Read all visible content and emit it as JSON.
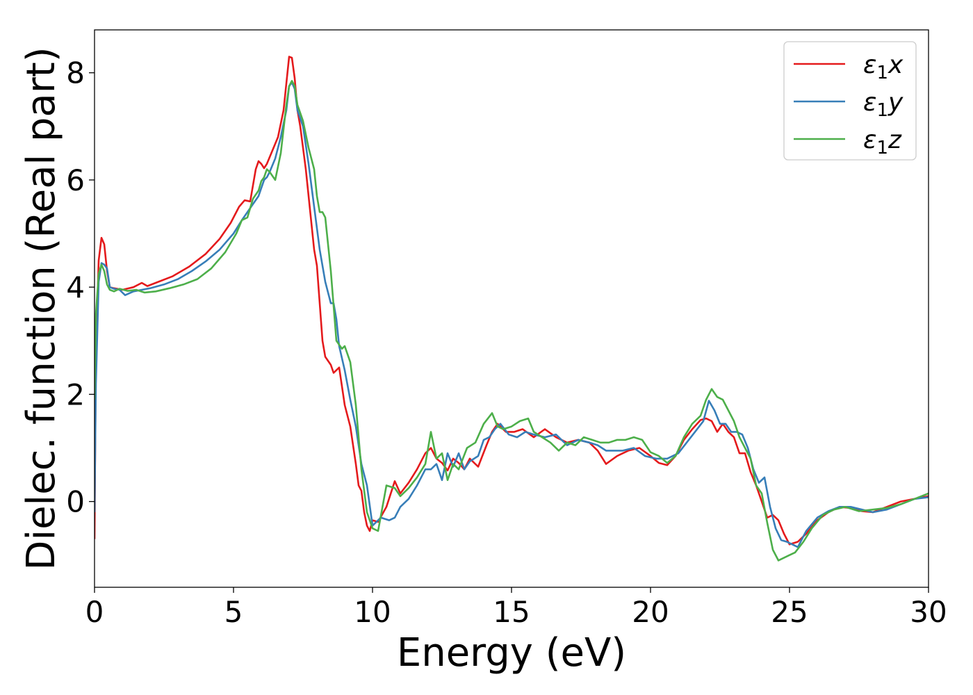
{
  "chart_data": {
    "type": "line",
    "title": "",
    "xlabel": "Energy (eV)",
    "ylabel": "Dielec. function (Real part)",
    "xlim": [
      0,
      30
    ],
    "ylim": [
      -1.6,
      8.8
    ],
    "xticks": [
      0,
      5,
      10,
      15,
      20,
      25,
      30
    ],
    "yticks": [
      0,
      2,
      4,
      6,
      8
    ],
    "grid": false,
    "legend_position": "top-right",
    "series": [
      {
        "name": "ε1x",
        "legend_main": "ε",
        "legend_sub": "1",
        "legend_suffix": "x",
        "color": "#e41a1c",
        "x": [
          0.0,
          0.05,
          0.15,
          0.25,
          0.35,
          0.45,
          0.55,
          0.7,
          1.0,
          1.4,
          1.7,
          1.9,
          2.2,
          2.8,
          3.4,
          4.0,
          4.5,
          4.9,
          5.2,
          5.4,
          5.6,
          5.8,
          5.9,
          6.0,
          6.1,
          6.2,
          6.4,
          6.6,
          6.8,
          6.9,
          7.0,
          7.1,
          7.2,
          7.3,
          7.4,
          7.6,
          7.8,
          7.9,
          8.0,
          8.2,
          8.3,
          8.5,
          8.6,
          8.8,
          9.0,
          9.2,
          9.4,
          9.5,
          9.6,
          9.7,
          9.8,
          9.9,
          10.0,
          10.2,
          10.5,
          10.8,
          11.0,
          11.3,
          11.6,
          11.9,
          12.1,
          12.3,
          12.5,
          12.7,
          12.9,
          13.1,
          13.3,
          13.5,
          13.8,
          14.1,
          14.3,
          14.5,
          14.8,
          15.1,
          15.4,
          15.8,
          16.2,
          16.6,
          17.0,
          17.4,
          17.8,
          18.1,
          18.4,
          18.8,
          19.2,
          19.6,
          20.0,
          20.3,
          20.6,
          20.9,
          21.2,
          21.5,
          21.8,
          22.0,
          22.2,
          22.4,
          22.6,
          22.8,
          23.0,
          23.2,
          23.4,
          23.6,
          23.8,
          24.0,
          24.2,
          24.4,
          24.6,
          24.8,
          25.0,
          25.3,
          25.6,
          26.0,
          26.4,
          26.8,
          27.2,
          27.6,
          28.0,
          28.5,
          29.0,
          29.5,
          30.0
        ],
        "y": [
          -0.7,
          2.8,
          4.5,
          4.92,
          4.8,
          4.3,
          4.0,
          3.98,
          3.95,
          4.0,
          4.08,
          4.02,
          4.08,
          4.2,
          4.38,
          4.62,
          4.9,
          5.2,
          5.5,
          5.62,
          5.6,
          6.2,
          6.35,
          6.3,
          6.22,
          6.3,
          6.55,
          6.8,
          7.3,
          7.8,
          8.3,
          8.28,
          7.9,
          7.3,
          7.0,
          6.2,
          5.2,
          4.7,
          4.4,
          3.0,
          2.7,
          2.55,
          2.4,
          2.5,
          1.8,
          1.4,
          0.7,
          0.3,
          0.2,
          -0.2,
          -0.45,
          -0.55,
          -0.35,
          -0.38,
          -0.1,
          0.38,
          0.15,
          0.35,
          0.6,
          0.9,
          1.0,
          0.8,
          0.72,
          0.58,
          0.8,
          0.72,
          0.6,
          0.8,
          0.65,
          1.05,
          1.3,
          1.45,
          1.3,
          1.3,
          1.35,
          1.2,
          1.35,
          1.2,
          1.1,
          1.15,
          1.1,
          0.95,
          0.7,
          0.85,
          0.95,
          1.0,
          0.85,
          0.72,
          0.68,
          0.85,
          1.15,
          1.35,
          1.52,
          1.55,
          1.5,
          1.3,
          1.45,
          1.3,
          1.2,
          0.9,
          0.9,
          0.55,
          0.3,
          0.0,
          -0.3,
          -0.25,
          -0.35,
          -0.6,
          -0.8,
          -0.75,
          -0.6,
          -0.35,
          -0.2,
          -0.1,
          -0.12,
          -0.18,
          -0.2,
          -0.1,
          0.0,
          0.05,
          0.1
        ]
      },
      {
        "name": "ε1y",
        "legend_main": "ε",
        "legend_sub": "1",
        "legend_suffix": "y",
        "color": "#377eb8",
        "x": [
          0.0,
          0.05,
          0.15,
          0.25,
          0.35,
          0.45,
          0.55,
          0.7,
          0.9,
          1.1,
          1.4,
          1.7,
          2.0,
          2.5,
          3.0,
          3.5,
          4.0,
          4.5,
          5.0,
          5.3,
          5.5,
          5.7,
          5.9,
          6.0,
          6.1,
          6.2,
          6.3,
          6.5,
          6.7,
          6.9,
          7.0,
          7.1,
          7.2,
          7.3,
          7.5,
          7.7,
          7.9,
          8.1,
          8.3,
          8.5,
          8.6,
          8.7,
          8.8,
          9.0,
          9.2,
          9.4,
          9.6,
          9.8,
          10.0,
          10.3,
          10.6,
          10.8,
          11.0,
          11.3,
          11.6,
          11.9,
          12.1,
          12.3,
          12.5,
          12.7,
          12.9,
          13.1,
          13.3,
          13.5,
          13.8,
          14.0,
          14.2,
          14.4,
          14.6,
          14.9,
          15.2,
          15.5,
          15.8,
          16.2,
          16.6,
          17.0,
          17.4,
          17.8,
          18.1,
          18.4,
          18.7,
          19.0,
          19.4,
          19.8,
          20.2,
          20.6,
          21.0,
          21.3,
          21.6,
          21.9,
          22.1,
          22.3,
          22.5,
          22.7,
          22.9,
          23.1,
          23.3,
          23.5,
          23.7,
          23.9,
          24.1,
          24.3,
          24.5,
          24.7,
          24.9,
          25.1,
          25.3,
          25.6,
          26.0,
          26.4,
          26.8,
          27.2,
          27.6,
          28.0,
          28.5,
          29.0,
          29.5,
          30.0
        ],
        "y": [
          -0.2,
          2.2,
          4.1,
          4.45,
          4.42,
          4.35,
          4.0,
          3.97,
          3.95,
          3.85,
          3.92,
          3.95,
          3.98,
          4.05,
          4.15,
          4.3,
          4.48,
          4.7,
          5.0,
          5.25,
          5.4,
          5.55,
          5.7,
          5.85,
          6.0,
          6.05,
          6.15,
          6.4,
          6.8,
          7.3,
          7.75,
          7.82,
          7.7,
          7.3,
          7.0,
          6.3,
          5.5,
          4.7,
          4.1,
          3.7,
          3.7,
          3.4,
          2.9,
          2.45,
          1.9,
          1.4,
          0.7,
          0.3,
          -0.45,
          -0.3,
          -0.35,
          -0.3,
          -0.1,
          0.05,
          0.3,
          0.6,
          0.6,
          0.7,
          0.4,
          0.9,
          0.65,
          0.9,
          0.6,
          0.75,
          0.85,
          1.15,
          1.2,
          1.35,
          1.45,
          1.25,
          1.2,
          1.3,
          1.25,
          1.2,
          1.25,
          1.05,
          1.15,
          1.1,
          1.05,
          0.95,
          0.95,
          0.95,
          1.0,
          0.85,
          0.8,
          0.8,
          0.9,
          1.1,
          1.3,
          1.5,
          1.88,
          1.7,
          1.45,
          1.45,
          1.3,
          1.3,
          1.25,
          1.0,
          0.6,
          0.35,
          0.45,
          -0.1,
          -0.5,
          -0.72,
          -0.75,
          -0.8,
          -0.85,
          -0.55,
          -0.3,
          -0.18,
          -0.1,
          -0.1,
          -0.15,
          -0.2,
          -0.15,
          -0.05,
          0.05,
          0.08
        ]
      },
      {
        "name": "ε1z",
        "legend_main": "ε",
        "legend_sub": "1",
        "legend_suffix": "z",
        "color": "#4daf4a",
        "x": [
          0.0,
          0.05,
          0.15,
          0.25,
          0.35,
          0.45,
          0.55,
          0.7,
          0.9,
          1.2,
          1.5,
          1.8,
          2.2,
          2.7,
          3.2,
          3.7,
          4.2,
          4.7,
          5.1,
          5.3,
          5.5,
          5.7,
          5.9,
          6.0,
          6.1,
          6.2,
          6.3,
          6.5,
          6.7,
          6.9,
          7.0,
          7.1,
          7.2,
          7.3,
          7.5,
          7.7,
          7.9,
          8.0,
          8.1,
          8.2,
          8.3,
          8.5,
          8.7,
          8.9,
          9.0,
          9.2,
          9.4,
          9.6,
          9.8,
          10.0,
          10.2,
          10.5,
          10.8,
          11.0,
          11.3,
          11.6,
          11.9,
          12.1,
          12.3,
          12.5,
          12.7,
          12.9,
          13.1,
          13.4,
          13.7,
          14.0,
          14.3,
          14.5,
          14.7,
          15.0,
          15.3,
          15.6,
          15.8,
          16.1,
          16.4,
          16.7,
          17.0,
          17.3,
          17.6,
          17.9,
          18.2,
          18.5,
          18.8,
          19.1,
          19.4,
          19.7,
          20.0,
          20.3,
          20.6,
          20.9,
          21.2,
          21.5,
          21.8,
          22.0,
          22.2,
          22.4,
          22.6,
          22.8,
          23.0,
          23.2,
          23.4,
          23.6,
          23.8,
          24.0,
          24.2,
          24.4,
          24.6,
          24.8,
          25.0,
          25.2,
          25.5,
          25.8,
          26.2,
          26.6,
          27.0,
          27.5,
          28.0,
          28.5,
          29.0,
          29.5,
          30.0
        ],
        "y": [
          1.9,
          3.5,
          4.25,
          4.42,
          4.3,
          4.05,
          3.95,
          3.92,
          3.97,
          3.93,
          3.95,
          3.9,
          3.92,
          3.98,
          4.05,
          4.15,
          4.35,
          4.65,
          5.0,
          5.25,
          5.3,
          5.65,
          5.8,
          5.98,
          6.05,
          6.2,
          6.15,
          6.0,
          6.5,
          7.4,
          7.75,
          7.85,
          7.75,
          7.4,
          7.1,
          6.6,
          6.2,
          5.7,
          5.4,
          5.4,
          5.3,
          4.3,
          3.0,
          2.85,
          2.9,
          2.6,
          1.8,
          0.6,
          -0.2,
          -0.5,
          -0.55,
          0.3,
          0.25,
          0.1,
          0.25,
          0.45,
          0.7,
          1.3,
          0.8,
          0.9,
          0.4,
          0.7,
          0.6,
          1.0,
          1.1,
          1.45,
          1.65,
          1.4,
          1.35,
          1.4,
          1.5,
          1.55,
          1.3,
          1.2,
          1.1,
          0.95,
          1.1,
          1.05,
          1.2,
          1.15,
          1.1,
          1.1,
          1.15,
          1.15,
          1.2,
          1.15,
          0.92,
          0.85,
          0.72,
          0.85,
          1.2,
          1.45,
          1.6,
          1.9,
          2.1,
          1.95,
          1.9,
          1.7,
          1.5,
          1.2,
          1.0,
          0.8,
          0.3,
          0.15,
          -0.4,
          -0.9,
          -1.1,
          -1.05,
          -1.0,
          -0.95,
          -0.75,
          -0.5,
          -0.25,
          -0.15,
          -0.1,
          -0.18,
          -0.15,
          -0.12,
          -0.05,
          0.05,
          0.15
        ]
      }
    ]
  }
}
